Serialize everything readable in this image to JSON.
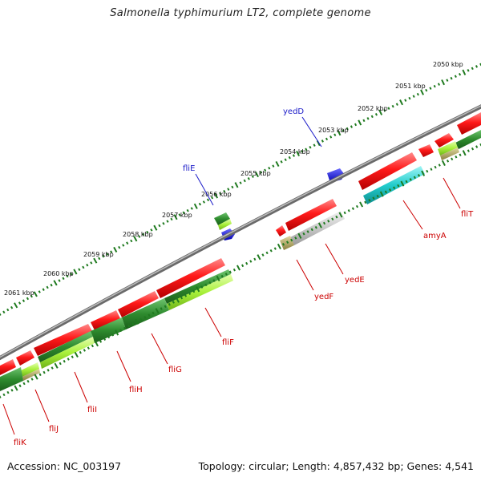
{
  "title": "Salmonella typhimurium LT2, complete genome",
  "footer": {
    "accession": "Accession: NC_003197",
    "summary": "Topology: circular; Length: 4,857,432 bp; Genes: 4,541"
  },
  "colors": {
    "backbone": "#8a8a8a",
    "ticks": "#1f7a1f",
    "gene_red": "#ff1a1a",
    "label_red": "#cc0000",
    "label_blue": "#1a1ac8",
    "green_dark": "#2e8b2e",
    "green_light": "#a8f03a",
    "cyan": "#22cccc",
    "grey": "#c8c8c8",
    "blue": "#1a1aee",
    "olive": "#b0a860"
  },
  "kbp_labels": [
    "2050 kbp",
    "2051 kbp",
    "2052 kbp",
    "2053 kbp",
    "2054 kbp",
    "2055 kbp",
    "2056 kbp",
    "2057 kbp",
    "2058 kbp",
    "2059 kbp",
    "2060 kbp",
    "2061 kbp"
  ],
  "genes": {
    "fliT": "fliT",
    "amyA": "amyA",
    "yedE": "yedE",
    "yedF": "yedF",
    "fliF": "fliF",
    "fliG": "fliG",
    "fliH": "fliH",
    "fliI": "fliI",
    "fliJ": "fliJ",
    "fliK": "fliK",
    "yedD": "yedD",
    "fliE": "fliE"
  }
}
